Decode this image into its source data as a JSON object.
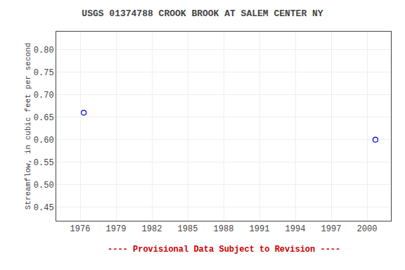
{
  "chart_data": {
    "type": "scatter",
    "title": "USGS 01374788 CROOK BROOK AT SALEM CENTER NY",
    "y_label": "Streamflow, in cubic feet per second",
    "series": [
      {
        "x": [
          1976.3,
          2000.7
        ],
        "values": [
          0.66,
          0.6
        ],
        "color": "#0000cc",
        "marker": "circle-open"
      }
    ],
    "xlim": [
      1974.0,
      2002.0
    ],
    "ylim": [
      0.42,
      0.84
    ],
    "xticks": [
      1976,
      1979,
      1982,
      1985,
      1988,
      1991,
      1994,
      1997,
      2000
    ],
    "yticks": [
      0.45,
      {
        "value": 0.5,
        "label": "0.50"
      },
      0.55,
      {
        "value": 0.6,
        "label": "0.60"
      },
      0.65,
      {
        "value": 0.7,
        "label": "0.70"
      },
      0.75,
      {
        "value": 0.8,
        "label": "0.80"
      }
    ],
    "grid": true,
    "annotations": [
      {
        "text": "---- Provisional Data Subject to Revision ----",
        "color": "#cc0000"
      }
    ]
  }
}
